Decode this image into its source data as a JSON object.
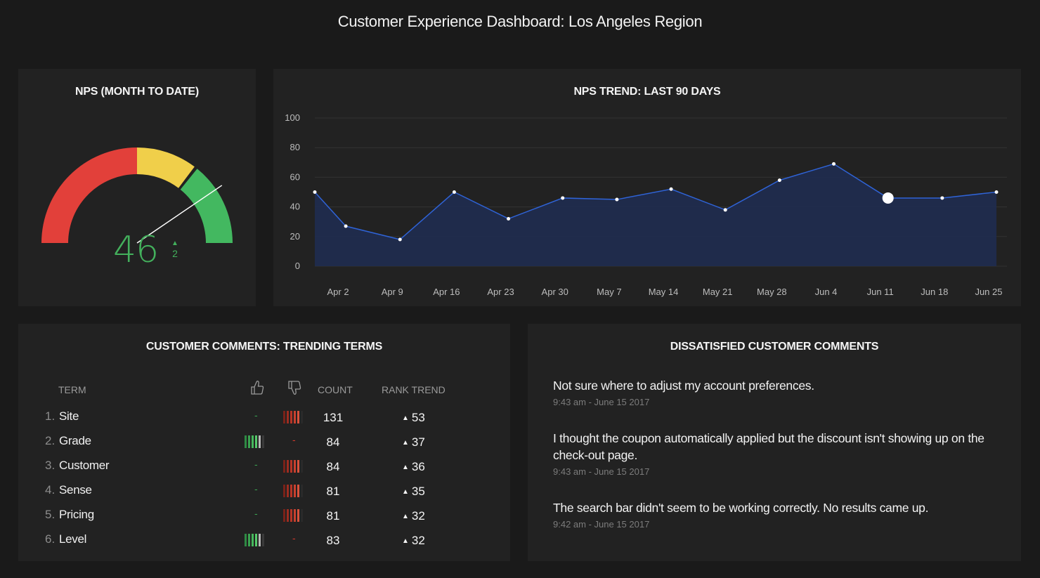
{
  "dashboard": {
    "title": "Customer Experience Dashboard: Los Angeles Region"
  },
  "nps_panel": {
    "title": "NPS (MONTH TO DATE)",
    "value": "46",
    "delta": "2",
    "delta_direction": "up",
    "gauge_colors": {
      "low": "#e2403a",
      "mid": "#f0cf4a",
      "high": "#43b860"
    },
    "needle_value_fraction": 0.81
  },
  "trend_panel": {
    "title": "NPS TREND: LAST 90 DAYS"
  },
  "chart_data": {
    "type": "area",
    "title": "NPS TREND: LAST 90 DAYS",
    "xlabel": "",
    "ylabel": "",
    "ylim": [
      0,
      100
    ],
    "y_ticks": [
      "0",
      "20",
      "40",
      "60",
      "80",
      "100"
    ],
    "x_tick_labels": [
      "Apr 2",
      "Apr 9",
      "Apr 16",
      "Apr 23",
      "Apr 30",
      "May 7",
      "May 14",
      "May 21",
      "May 28",
      "Jun 4",
      "Jun 11",
      "Jun 18",
      "Jun 25"
    ],
    "x_tick_days": [
      3,
      10,
      17,
      24,
      31,
      38,
      45,
      52,
      59,
      66,
      73,
      80,
      87
    ],
    "x": [
      "Mar 30",
      "Apr 3",
      "Apr 10",
      "Apr 17",
      "Apr 24",
      "May 1",
      "May 8",
      "May 15",
      "May 22",
      "May 29",
      "Jun 5",
      "Jun 12",
      "Jun 19",
      "Jun 26"
    ],
    "x_days": [
      0,
      4,
      11,
      18,
      25,
      32,
      39,
      46,
      53,
      60,
      67,
      74,
      81,
      88
    ],
    "values": [
      50,
      27,
      18,
      50,
      32,
      46,
      45,
      52,
      38,
      58,
      69,
      46,
      46,
      50
    ],
    "highlight_index": 11,
    "grid": true,
    "colors": {
      "line": "#2f63d6",
      "fill": "#1e2d52",
      "point": "#ffffff"
    }
  },
  "terms_panel": {
    "title": "CUSTOMER COMMENTS: TRENDING TERMS",
    "headers": {
      "term": "TERM",
      "count": "COUNT",
      "rank_trend": "RANK TREND"
    },
    "rows": [
      {
        "rank": "1.",
        "term": "Site",
        "sentiment": "negative",
        "count": "131",
        "trend": "53"
      },
      {
        "rank": "2.",
        "term": "Grade",
        "sentiment": "positive",
        "count": "84",
        "trend": "37"
      },
      {
        "rank": "3.",
        "term": "Customer",
        "sentiment": "negative",
        "count": "84",
        "trend": "36"
      },
      {
        "rank": "4.",
        "term": "Sense",
        "sentiment": "negative",
        "count": "81",
        "trend": "35"
      },
      {
        "rank": "5.",
        "term": "Pricing",
        "sentiment": "negative",
        "count": "81",
        "trend": "32"
      },
      {
        "rank": "6.",
        "term": "Level",
        "sentiment": "positive",
        "count": "83",
        "trend": "32"
      }
    ],
    "colors": {
      "positive": "#3aa150",
      "negative": "#c0392b"
    }
  },
  "comments_panel": {
    "title": "DISSATISFIED CUSTOMER COMMENTS",
    "comments": [
      {
        "text": "Not sure where to adjust my account preferences.",
        "time": "9:43 am - June 15 2017"
      },
      {
        "text": "I thought the coupon automatically applied but the discount isn't showing up on the check-out page.",
        "time": "9:43 am - June 15 2017"
      },
      {
        "text": "The search bar didn't seem to be working correctly. No results came up.",
        "time": "9:42 am - June 15 2017"
      }
    ]
  }
}
